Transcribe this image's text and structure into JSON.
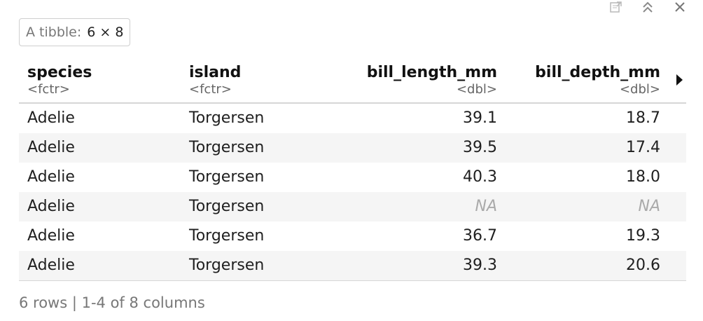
{
  "toolbar": {
    "icons": [
      "export-icon",
      "collapse-icon",
      "close-icon"
    ]
  },
  "tibble": {
    "label": "A tibble:",
    "dims": "6 × 8"
  },
  "columns": [
    {
      "name": "species",
      "type": "<fctr>"
    },
    {
      "name": "island",
      "type": "<fctr>"
    },
    {
      "name": "bill_length_mm",
      "type": "<dbl>"
    },
    {
      "name": "bill_depth_mm",
      "type": "<dbl>"
    }
  ],
  "rows": [
    [
      "Adelie",
      "Torgersen",
      "39.1",
      "18.7"
    ],
    [
      "Adelie",
      "Torgersen",
      "39.5",
      "17.4"
    ],
    [
      "Adelie",
      "Torgersen",
      "40.3",
      "18.0"
    ],
    [
      "Adelie",
      "Torgersen",
      "NA",
      "NA"
    ],
    [
      "Adelie",
      "Torgersen",
      "36.7",
      "19.3"
    ],
    [
      "Adelie",
      "Torgersen",
      "39.3",
      "20.6"
    ]
  ],
  "footer": {
    "text": "6 rows | 1-4 of 8 columns"
  },
  "colors": {
    "na_text": "#aaaaaa",
    "alt_row": "#f5f5f5",
    "border": "#d6d6d6"
  }
}
